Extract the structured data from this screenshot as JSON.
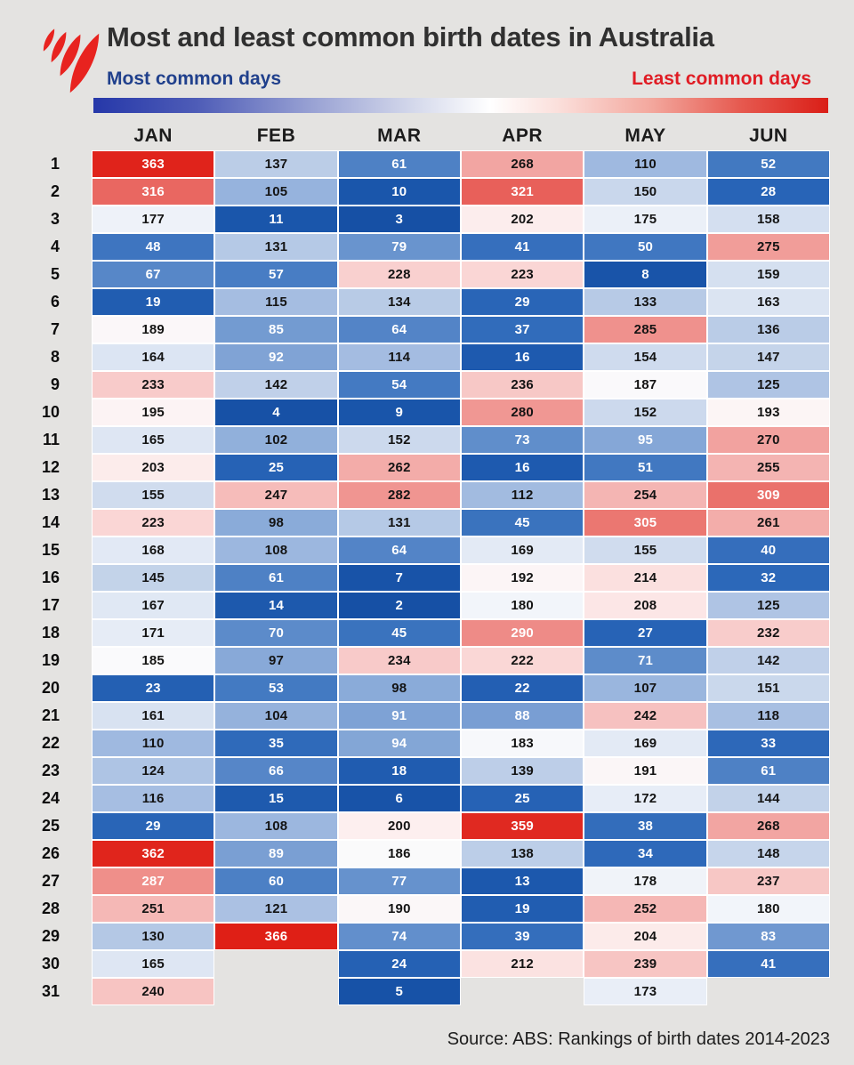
{
  "header": {
    "title": "Most and least common birth dates in Australia",
    "legend_left": "Most common days",
    "legend_right": "Least common days",
    "logo": "sbs-logo"
  },
  "source": "Source: ABS: Rankings of birth dates 2014-2023",
  "colors": {
    "page_bg": "#e4e3e1",
    "title_text": "#303030",
    "legend_left_text": "#20408c",
    "legend_right_text": "#e01c24",
    "logo_red": "#e8231f",
    "cell_text_dark": "#141414",
    "cell_text_light": "#ffffff",
    "cell_border": "#ffffff",
    "scale_bar_stops": [
      "#2638a9 0%",
      "#4e5cb7 14%",
      "#9aa3d4 30%",
      "#d6daec 44%",
      "#ffffff 54%",
      "#fbe0dc 63%",
      "#f3a79d 76%",
      "#e65a50 88%",
      "#da1e17 100%"
    ],
    "heatmap_stops": [
      {
        "t": 0.0,
        "rgb": [
          21,
          79,
          164
        ]
      },
      {
        "t": 0.03,
        "rgb": [
          27,
          87,
          172
        ]
      },
      {
        "t": 0.08,
        "rgb": [
          42,
          102,
          184
        ]
      },
      {
        "t": 0.15,
        "rgb": [
          70,
          124,
          195
        ]
      },
      {
        "t": 0.22,
        "rgb": [
          109,
          150,
          207
        ]
      },
      {
        "t": 0.3,
        "rgb": [
          160,
          186,
          224
        ]
      },
      {
        "t": 0.4,
        "rgb": [
          197,
          212,
          234
        ]
      },
      {
        "t": 0.47,
        "rgb": [
          232,
          238,
          247
        ]
      },
      {
        "t": 0.505,
        "rgb": [
          250,
          250,
          252
        ]
      },
      {
        "t": 0.54,
        "rgb": [
          253,
          241,
          241
        ]
      },
      {
        "t": 0.6,
        "rgb": [
          250,
          217,
          216
        ]
      },
      {
        "t": 0.7,
        "rgb": [
          244,
          178,
          176
        ]
      },
      {
        "t": 0.8,
        "rgb": [
          238,
          136,
          131
        ]
      },
      {
        "t": 0.9,
        "rgb": [
          230,
          84,
          77
        ]
      },
      {
        "t": 1.0,
        "rgb": [
          223,
          31,
          22
        ]
      }
    ]
  },
  "chart_data": {
    "type": "heatmap",
    "title": "Most and least common birth dates in Australia",
    "value_meaning": "Rank of each birth date's commonness, 1 = most common day, 366 = least common day",
    "scale": {
      "min": 1,
      "max": 366,
      "low_label": "Most common days",
      "high_label": "Least common days",
      "low_color": "#154fa4",
      "mid_color": "#ffffff",
      "high_color": "#df1f16"
    },
    "categories": [
      "JAN",
      "FEB",
      "MAR",
      "APR",
      "MAY",
      "JUN"
    ],
    "row_labels": [
      1,
      2,
      3,
      4,
      5,
      6,
      7,
      8,
      9,
      10,
      11,
      12,
      13,
      14,
      15,
      16,
      17,
      18,
      19,
      20,
      21,
      22,
      23,
      24,
      25,
      26,
      27,
      28,
      29,
      30,
      31
    ],
    "series": [
      {
        "name": "JAN",
        "values": [
          363,
          316,
          177,
          48,
          67,
          19,
          189,
          164,
          233,
          195,
          165,
          203,
          155,
          223,
          168,
          145,
          167,
          171,
          185,
          23,
          161,
          110,
          124,
          116,
          29,
          362,
          287,
          251,
          130,
          165,
          240
        ]
      },
      {
        "name": "FEB",
        "values": [
          137,
          105,
          11,
          131,
          57,
          115,
          85,
          92,
          142,
          4,
          102,
          25,
          247,
          98,
          108,
          61,
          14,
          70,
          97,
          53,
          104,
          35,
          66,
          15,
          108,
          89,
          60,
          121,
          366,
          null,
          null
        ]
      },
      {
        "name": "MAR",
        "values": [
          61,
          10,
          3,
          79,
          228,
          134,
          64,
          114,
          54,
          9,
          152,
          262,
          282,
          131,
          64,
          7,
          2,
          45,
          234,
          98,
          91,
          94,
          18,
          6,
          200,
          186,
          77,
          190,
          74,
          24,
          5
        ]
      },
      {
        "name": "APR",
        "values": [
          268,
          321,
          202,
          41,
          223,
          29,
          37,
          16,
          236,
          280,
          73,
          16,
          112,
          45,
          169,
          192,
          180,
          290,
          222,
          22,
          88,
          183,
          139,
          25,
          359,
          138,
          13,
          19,
          39,
          212,
          null
        ]
      },
      {
        "name": "MAY",
        "values": [
          110,
          150,
          175,
          50,
          8,
          133,
          285,
          154,
          187,
          152,
          95,
          51,
          254,
          305,
          155,
          214,
          208,
          27,
          71,
          107,
          242,
          169,
          191,
          172,
          38,
          34,
          178,
          252,
          204,
          239,
          173
        ]
      },
      {
        "name": "JUN",
        "values": [
          52,
          28,
          158,
          275,
          159,
          163,
          136,
          147,
          125,
          193,
          270,
          255,
          309,
          261,
          40,
          32,
          125,
          232,
          142,
          151,
          118,
          33,
          61,
          144,
          268,
          148,
          237,
          180,
          83,
          41,
          null
        ]
      }
    ],
    "source": "Source: ABS: Rankings of birth dates 2014-2023"
  }
}
